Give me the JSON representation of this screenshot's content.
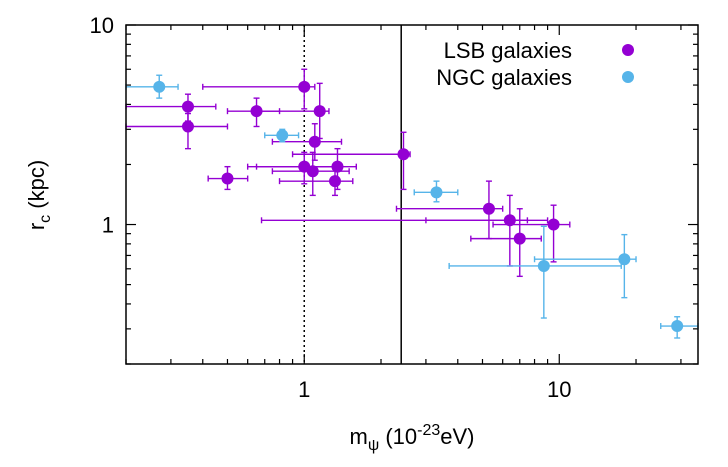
{
  "chart_data": {
    "type": "scatter",
    "title": "",
    "xlabel": "m",
    "xlabel_sub": "ψ",
    "xlabel_unit_pre": " (10",
    "xlabel_unit_sup": "-23",
    "xlabel_unit_post": "eV)",
    "ylabel": "r",
    "ylabel_sub": "c",
    "ylabel_unit": " (kpc)",
    "x_scale": "log",
    "y_scale": "log",
    "xlim": [
      0.2,
      35
    ],
    "ylim": [
      0.2,
      10
    ],
    "x_ticks": [
      {
        "value": 1,
        "label": "1"
      },
      {
        "value": 10,
        "label": "10"
      }
    ],
    "y_ticks": [
      {
        "value": 1,
        "label": "1"
      },
      {
        "value": 10,
        "label": "10"
      }
    ],
    "legend_position": "top-right",
    "reference_lines": [
      {
        "x": 1,
        "style": "dotted"
      },
      {
        "x": 2.4,
        "style": "solid"
      }
    ],
    "series": [
      {
        "name": "LSB galaxies",
        "color": "#9400d3",
        "points": [
          {
            "x": 0.35,
            "xlo": 0.2,
            "xhi": 0.45,
            "y": 3.9,
            "ylo": 3.3,
            "yhi": 4.5
          },
          {
            "x": 0.35,
            "xlo": 0.2,
            "xhi": 0.5,
            "y": 3.1,
            "ylo": 2.4,
            "yhi": 3.6
          },
          {
            "x": 0.5,
            "xlo": 0.42,
            "xhi": 0.6,
            "y": 1.7,
            "ylo": 1.5,
            "yhi": 1.95
          },
          {
            "x": 0.65,
            "xlo": 0.5,
            "xhi": 0.8,
            "y": 3.7,
            "ylo": 3.1,
            "yhi": 4.3
          },
          {
            "x": 1.0,
            "xlo": 0.4,
            "xhi": 1.1,
            "y": 4.9,
            "ylo": 3.8,
            "yhi": 6.0
          },
          {
            "x": 1.0,
            "xlo": 0.6,
            "xhi": 1.4,
            "y": 1.95,
            "ylo": 1.6,
            "yhi": 2.3
          },
          {
            "x": 1.08,
            "xlo": 0.75,
            "xhi": 1.5,
            "y": 1.85,
            "ylo": 1.4,
            "yhi": 2.3
          },
          {
            "x": 1.1,
            "xlo": 0.75,
            "xhi": 1.4,
            "y": 2.6,
            "ylo": 2.1,
            "yhi": 3.2
          },
          {
            "x": 1.15,
            "xlo": 0.65,
            "xhi": 1.25,
            "y": 3.7,
            "ylo": 2.7,
            "yhi": 5.1
          },
          {
            "x": 1.35,
            "xlo": 0.65,
            "xhi": 1.6,
            "y": 1.95,
            "ylo": 1.5,
            "yhi": 2.4
          },
          {
            "x": 1.32,
            "xlo": 0.8,
            "xhi": 1.55,
            "y": 1.65,
            "ylo": 1.4,
            "yhi": 1.9
          },
          {
            "x": 2.45,
            "xlo": 0.9,
            "xhi": 2.6,
            "y": 2.25,
            "ylo": 1.5,
            "yhi": 2.9
          },
          {
            "x": 5.3,
            "xlo": 2.3,
            "xhi": 6.0,
            "y": 1.2,
            "ylo": 0.85,
            "yhi": 1.65
          },
          {
            "x": 6.4,
            "xlo": 3.0,
            "xhi": 7.5,
            "y": 1.05,
            "ylo": 0.62,
            "yhi": 1.4
          },
          {
            "x": 7.0,
            "xlo": 4.5,
            "xhi": 8.5,
            "y": 0.85,
            "ylo": 0.55,
            "yhi": 1.2
          },
          {
            "x": 9.5,
            "xlo": 5.5,
            "xhi": 11.0,
            "y": 1.0,
            "ylo": 0.65,
            "yhi": 1.25
          },
          {
            "x": 0.68,
            "xlo": 0.68,
            "xhi": 9.0,
            "y": 1.05,
            "ylo": 1.05,
            "yhi": 1.05
          }
        ]
      },
      {
        "name": "NGC galaxies",
        "color": "#56b4e9",
        "points": [
          {
            "x": 0.27,
            "xlo": 0.2,
            "xhi": 0.32,
            "y": 4.9,
            "ylo": 4.3,
            "yhi": 5.6
          },
          {
            "x": 0.82,
            "xlo": 0.7,
            "xhi": 0.95,
            "y": 2.8,
            "ylo": 2.6,
            "yhi": 3.0
          },
          {
            "x": 3.3,
            "xlo": 2.7,
            "xhi": 4.0,
            "y": 1.45,
            "ylo": 1.3,
            "yhi": 1.65
          },
          {
            "x": 8.7,
            "xlo": 3.7,
            "xhi": 17.5,
            "y": 0.62,
            "ylo": 0.34,
            "yhi": 0.98
          },
          {
            "x": 18.0,
            "xlo": 8.0,
            "xhi": 20.0,
            "y": 0.67,
            "ylo": 0.43,
            "yhi": 0.89
          },
          {
            "x": 29.0,
            "xlo": 25.0,
            "xhi": 35.0,
            "y": 0.31,
            "ylo": 0.27,
            "yhi": 0.345
          }
        ]
      }
    ]
  }
}
